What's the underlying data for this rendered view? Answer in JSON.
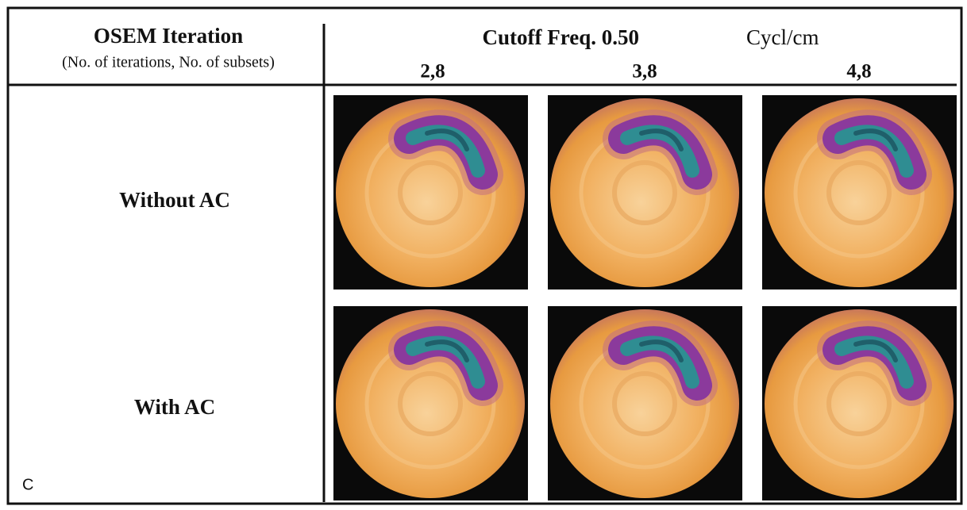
{
  "header": {
    "title": "OSEM Iteration",
    "subtitle": "(No. of iterations, No. of subsets)",
    "cutoff": "Cutoff Freq. 0.50",
    "unit": "Cycl/cm"
  },
  "columns": [
    "2,8",
    "3,8",
    "4,8"
  ],
  "rows": [
    "Without AC",
    "With AC"
  ],
  "panel_label": "C"
}
